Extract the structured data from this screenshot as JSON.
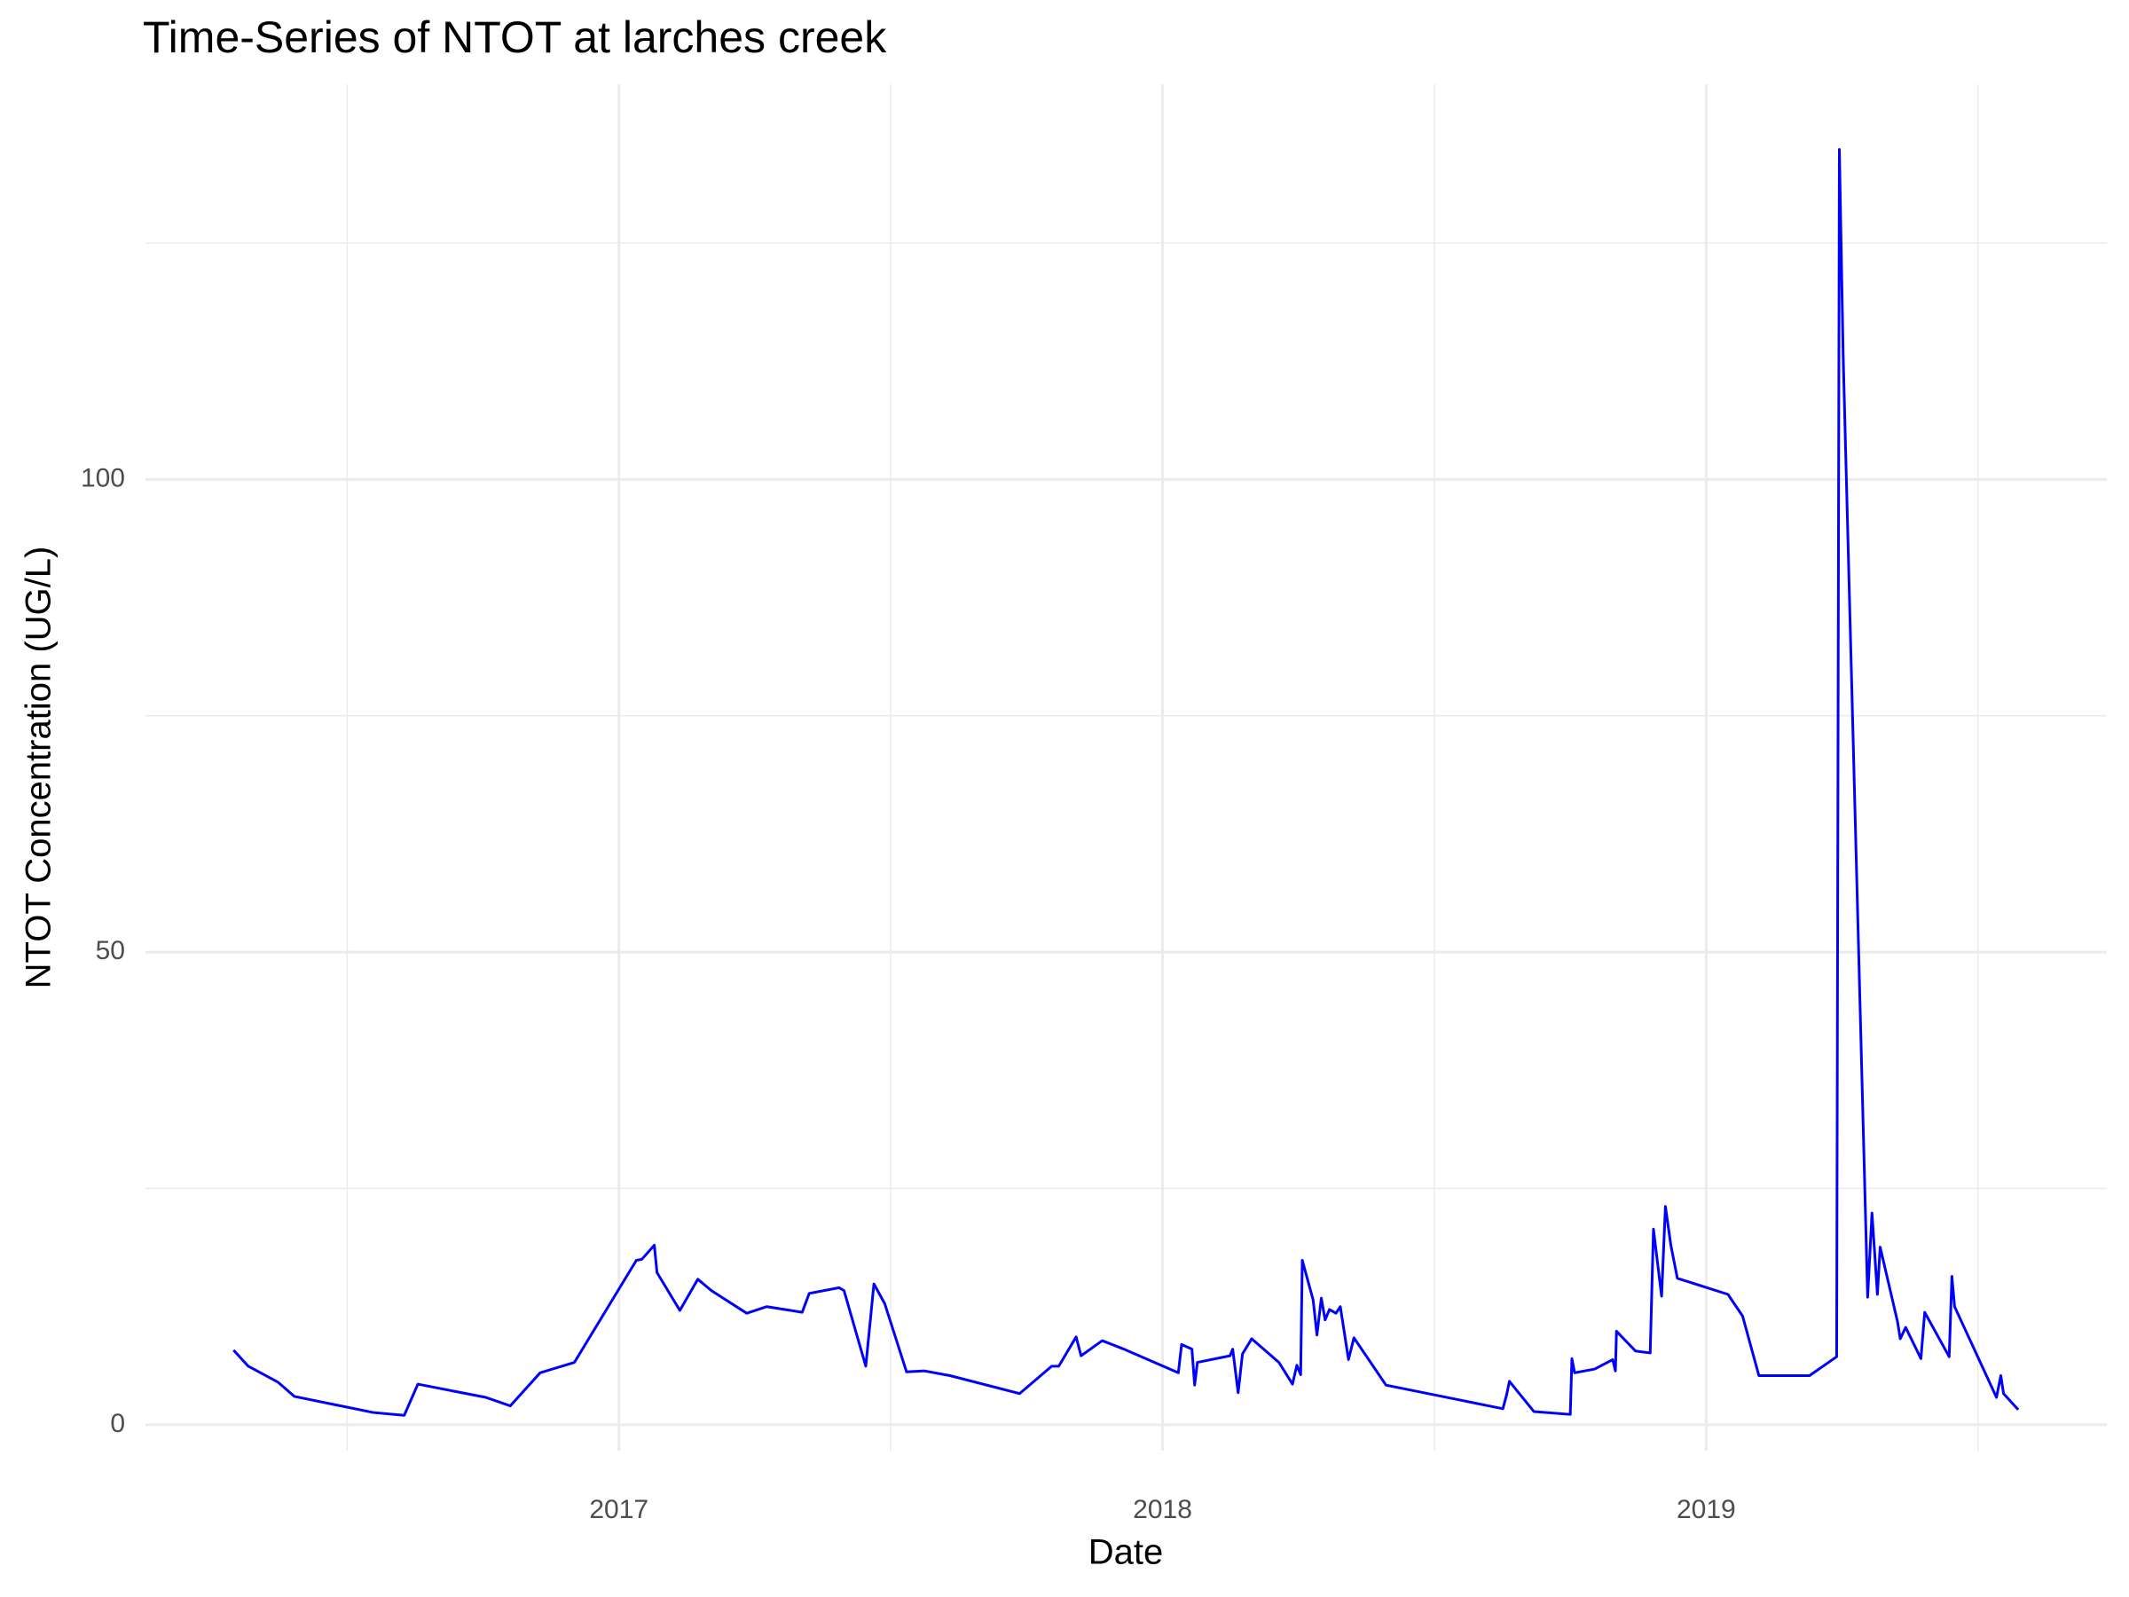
{
  "chart_data": {
    "type": "line",
    "title": "Time-Series of NTOT at larches creek",
    "x_label": "Date",
    "y_label": "NTOT Concentration (UG/L)",
    "color": "#0000ff",
    "grid": true,
    "xlim": [
      2016.129,
      2019.737
    ],
    "ylim": [
      -2.73,
      141.8
    ],
    "xticks": [
      2017,
      2018,
      2019
    ],
    "yticks": [
      0,
      50,
      100
    ],
    "minor_xticks": [
      2016.5,
      2017.5,
      2018.5,
      2019.5
    ],
    "minor_yticks": [
      25,
      75,
      125
    ],
    "x": [
      2016.291,
      2016.318,
      2016.373,
      2016.403,
      2016.548,
      2016.605,
      2016.63,
      2016.755,
      2016.8,
      2016.855,
      2016.918,
      2017.032,
      2017.042,
      2017.065,
      2017.07,
      2017.112,
      2017.145,
      2017.17,
      2017.235,
      2017.272,
      2017.337,
      2017.35,
      2017.405,
      2017.414,
      2017.454,
      2017.469,
      2017.489,
      2017.529,
      2017.562,
      2017.609,
      2017.737,
      2017.796,
      2017.809,
      2017.841,
      2017.85,
      2017.889,
      2017.929,
      2018.029,
      2018.035,
      2018.054,
      2018.059,
      2018.064,
      2018.124,
      2018.129,
      2018.139,
      2018.147,
      2018.164,
      2018.214,
      2018.239,
      2018.247,
      2018.254,
      2018.257,
      2018.277,
      2018.284,
      2018.292,
      2018.299,
      2018.307,
      2018.319,
      2018.327,
      2018.342,
      2018.352,
      2018.411,
      2018.626,
      2018.633,
      2018.638,
      2018.683,
      2018.75,
      2018.753,
      2018.758,
      2018.795,
      2018.828,
      2018.833,
      2018.835,
      2018.87,
      2018.897,
      2018.903,
      2018.918,
      2018.925,
      2018.935,
      2018.947,
      2019.04,
      2019.067,
      2019.097,
      2019.19,
      2019.24,
      2019.245,
      2019.252,
      2019.297,
      2019.305,
      2019.315,
      2019.32,
      2019.352,
      2019.357,
      2019.367,
      2019.395,
      2019.402,
      2019.447,
      2019.452,
      2019.457,
      2019.534,
      2019.542,
      2019.547,
      2019.574
    ],
    "values": [
      7.9,
      6.2,
      4.5,
      3.0,
      1.3,
      1.0,
      4.3,
      2.9,
      2.0,
      5.5,
      6.6,
      17.4,
      17.5,
      19.0,
      16.1,
      12.1,
      15.4,
      14.2,
      11.8,
      12.5,
      11.9,
      13.9,
      14.5,
      14.2,
      6.2,
      14.9,
      12.8,
      5.6,
      5.7,
      5.2,
      3.3,
      6.2,
      6.2,
      9.3,
      7.3,
      8.9,
      8.0,
      5.5,
      8.5,
      8.0,
      4.2,
      6.6,
      7.3,
      8.0,
      3.4,
      7.5,
      9.1,
      6.6,
      4.3,
      6.3,
      5.3,
      17.4,
      13.2,
      9.5,
      13.4,
      11.1,
      12.2,
      11.8,
      12.5,
      6.9,
      9.2,
      4.2,
      1.7,
      3.2,
      4.6,
      1.4,
      1.1,
      7.0,
      5.5,
      5.9,
      6.9,
      5.7,
      9.9,
      7.8,
      7.6,
      20.7,
      13.6,
      23.1,
      19.0,
      15.5,
      13.8,
      11.5,
      5.2,
      5.2,
      7.2,
      134.9,
      113.1,
      13.5,
      22.4,
      13.8,
      18.8,
      10.9,
      9.1,
      10.3,
      7.0,
      11.9,
      7.2,
      15.7,
      12.5,
      2.9,
      5.2,
      3.3,
      1.6
    ]
  }
}
